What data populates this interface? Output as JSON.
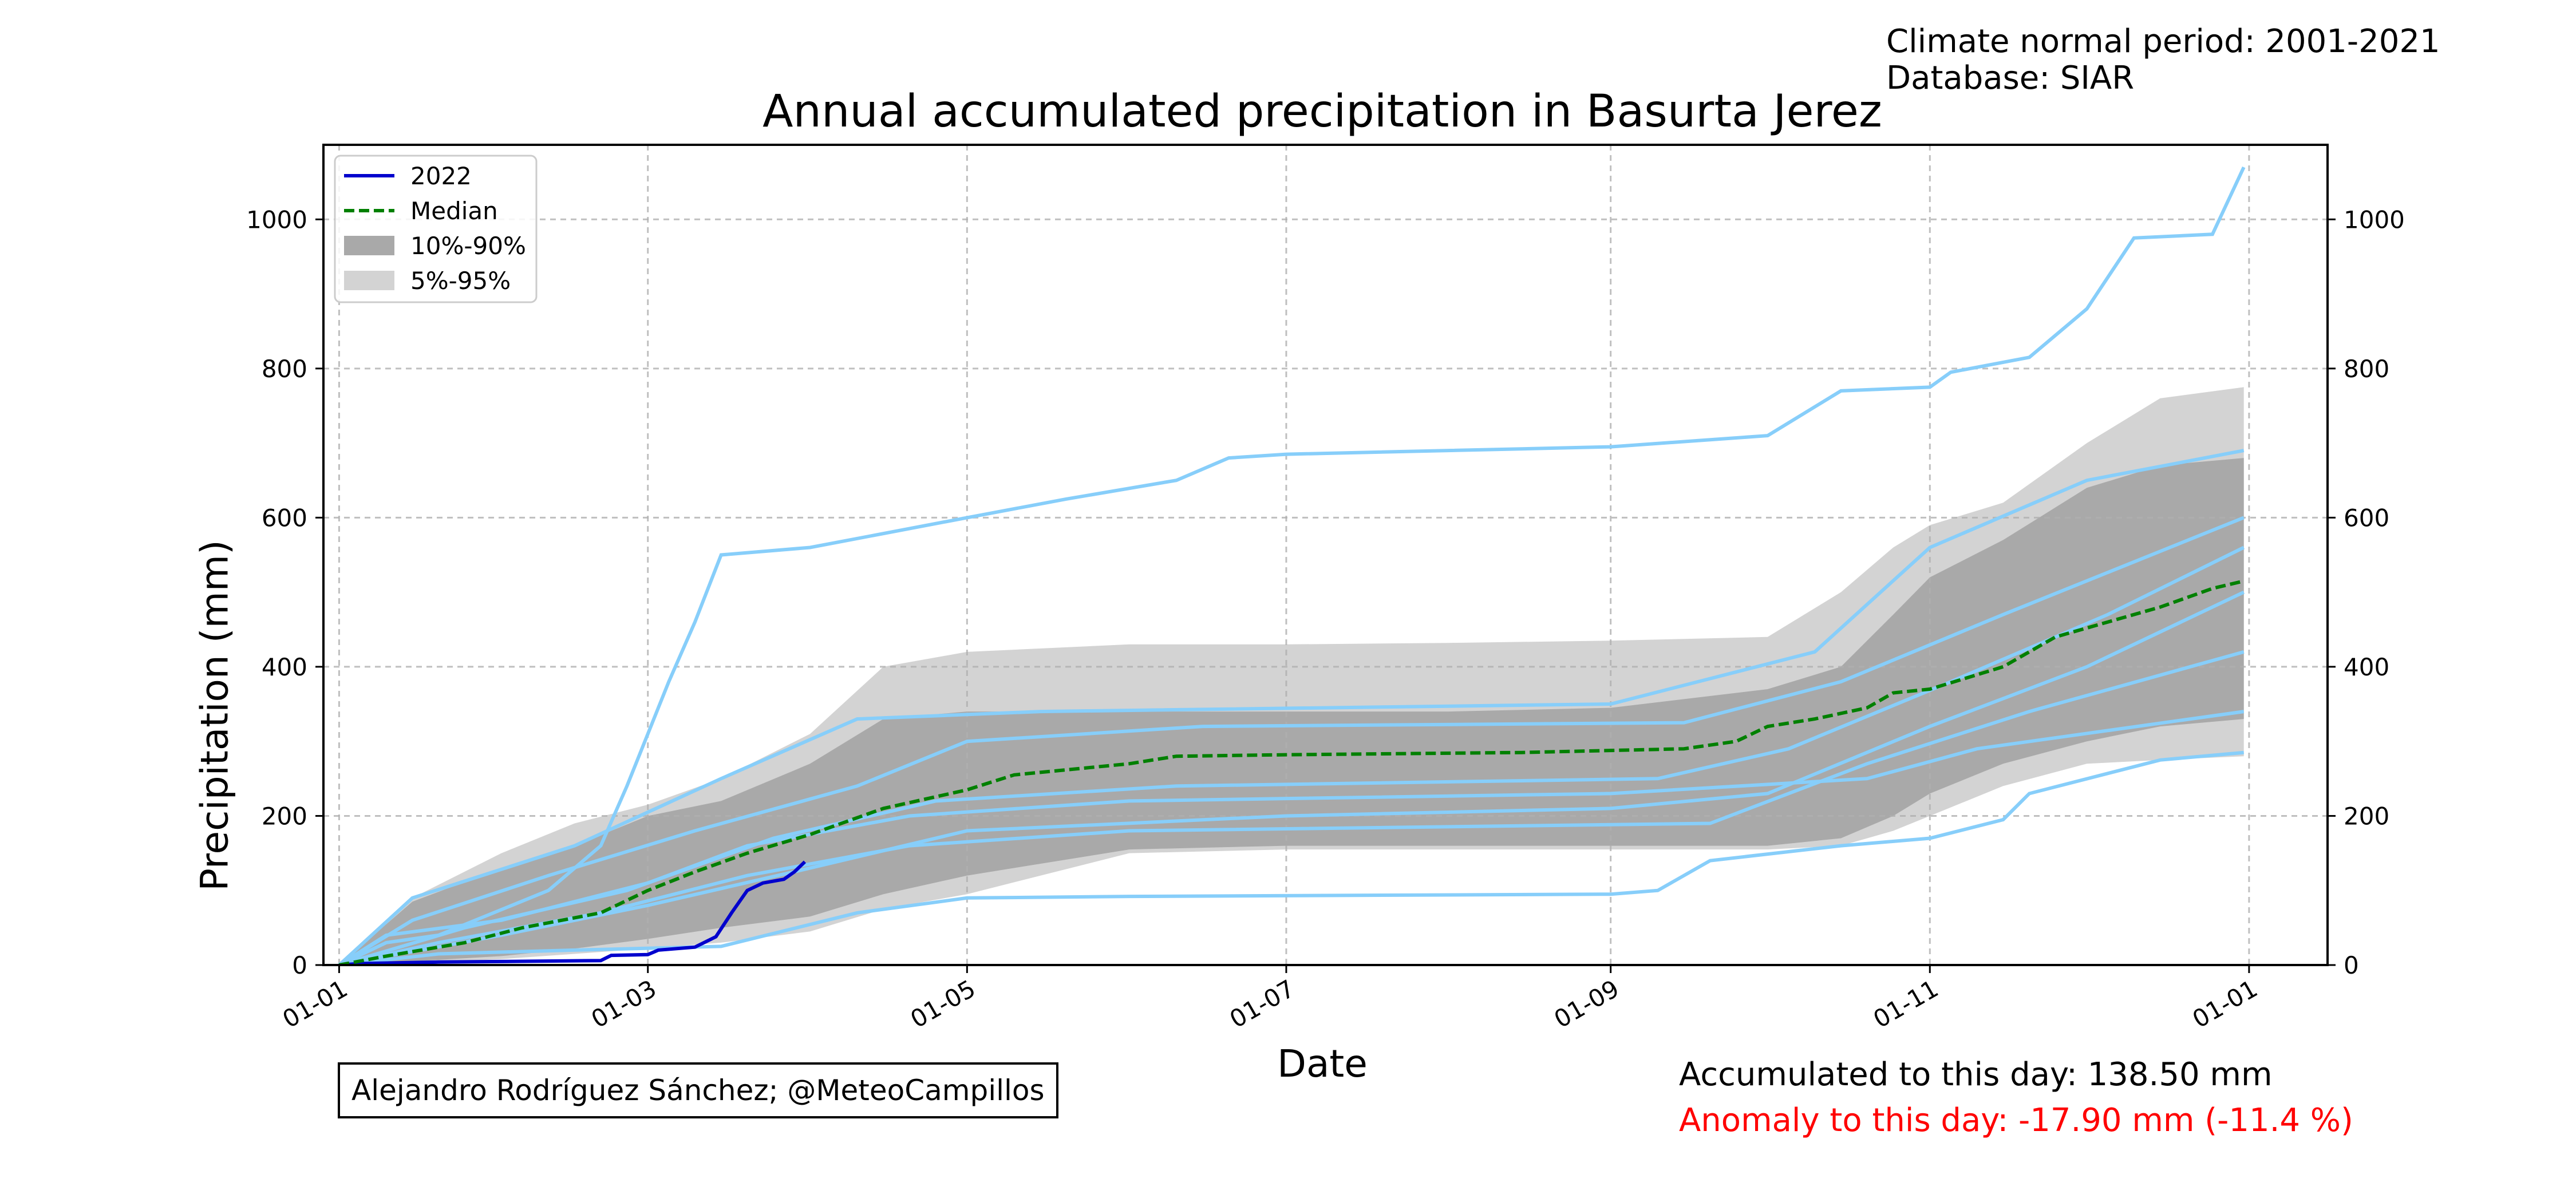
{
  "meta": {
    "normal_period": "Climate normal period: 2001-2021",
    "database": "Database: SIAR"
  },
  "credit": "Alejandro Rodríguez Sánchez; @MeteoCampillos",
  "stats": {
    "accumulated": "Accumulated to this day: 138.50 mm",
    "anomaly": "Anomaly to this day: -17.90 mm (-11.4 %)",
    "anomaly_color": "#ff0000"
  },
  "chart_data": {
    "type": "line",
    "title": "Annual accumulated precipitation in Basurta Jerez",
    "xlabel": "Date",
    "ylabel": "Precipitation (mm)",
    "xlim": [
      "2021-12-29",
      "2023-01-16"
    ],
    "ylim": [
      0,
      1100
    ],
    "x_ticks": [
      {
        "date": "2022-01-01",
        "label": "01-01"
      },
      {
        "date": "2022-03-01",
        "label": "01-03"
      },
      {
        "date": "2022-05-01",
        "label": "01-05"
      },
      {
        "date": "2022-07-01",
        "label": "01-07"
      },
      {
        "date": "2022-09-01",
        "label": "01-09"
      },
      {
        "date": "2022-11-01",
        "label": "01-11"
      },
      {
        "date": "2023-01-01",
        "label": "01-01"
      }
    ],
    "y_ticks": [
      0,
      200,
      400,
      600,
      800,
      1000
    ],
    "grid": true,
    "legend_position": "top-left",
    "colors": {
      "current": "#0000cd",
      "median": "#008000",
      "band_10_90": "#a9a9a9",
      "band_5_95": "#d3d3d3",
      "historical": "#87cefa"
    },
    "legend": [
      {
        "label": "2022",
        "kind": "line",
        "color": "#0000cd"
      },
      {
        "label": "Median",
        "kind": "dashed",
        "color": "#008000"
      },
      {
        "label": "10%-90%",
        "kind": "patch",
        "color": "#a9a9a9"
      },
      {
        "label": "5%-95%",
        "kind": "patch",
        "color": "#d3d3d3"
      }
    ],
    "series": [
      {
        "name": "2022",
        "style": "solid",
        "color": "#0000cd",
        "points": [
          [
            "2022-01-01",
            0
          ],
          [
            "2022-01-05",
            2
          ],
          [
            "2022-01-20",
            4
          ],
          [
            "2022-02-05",
            5
          ],
          [
            "2022-02-20",
            6
          ],
          [
            "2022-02-22",
            13
          ],
          [
            "2022-03-01",
            14
          ],
          [
            "2022-03-03",
            20
          ],
          [
            "2022-03-10",
            24
          ],
          [
            "2022-03-14",
            38
          ],
          [
            "2022-03-17",
            70
          ],
          [
            "2022-03-20",
            100
          ],
          [
            "2022-03-23",
            110
          ],
          [
            "2022-03-27",
            115
          ],
          [
            "2022-03-29",
            125
          ],
          [
            "2022-03-31",
            138.5
          ]
        ]
      },
      {
        "name": "Median",
        "style": "dashed",
        "color": "#008000",
        "points": [
          [
            "2022-01-01",
            0
          ],
          [
            "2022-01-10",
            12
          ],
          [
            "2022-01-25",
            30
          ],
          [
            "2022-02-05",
            50
          ],
          [
            "2022-02-20",
            70
          ],
          [
            "2022-03-01",
            100
          ],
          [
            "2022-03-10",
            125
          ],
          [
            "2022-03-20",
            150
          ],
          [
            "2022-04-01",
            175
          ],
          [
            "2022-04-15",
            210
          ],
          [
            "2022-05-01",
            235
          ],
          [
            "2022-05-10",
            255
          ],
          [
            "2022-06-01",
            270
          ],
          [
            "2022-06-10",
            280
          ],
          [
            "2022-07-01",
            282
          ],
          [
            "2022-08-15",
            285
          ],
          [
            "2022-09-15",
            290
          ],
          [
            "2022-09-25",
            300
          ],
          [
            "2022-10-01",
            320
          ],
          [
            "2022-10-10",
            330
          ],
          [
            "2022-10-20",
            345
          ],
          [
            "2022-10-25",
            365
          ],
          [
            "2022-11-01",
            370
          ],
          [
            "2022-11-15",
            400
          ],
          [
            "2022-11-25",
            440
          ],
          [
            "2022-12-05",
            460
          ],
          [
            "2022-12-15",
            480
          ],
          [
            "2022-12-25",
            505
          ],
          [
            "2022-12-31",
            515
          ]
        ]
      }
    ],
    "bands": [
      {
        "name": "5%-95%",
        "color": "#d3d3d3",
        "x": [
          "2022-01-01",
          "2022-01-15",
          "2022-02-01",
          "2022-02-15",
          "2022-03-01",
          "2022-03-15",
          "2022-04-01",
          "2022-04-15",
          "2022-05-01",
          "2022-06-01",
          "2022-07-01",
          "2022-08-01",
          "2022-09-01",
          "2022-10-01",
          "2022-10-15",
          "2022-10-25",
          "2022-11-01",
          "2022-11-15",
          "2022-12-01",
          "2022-12-15",
          "2022-12-31"
        ],
        "lower": [
          0,
          2,
          8,
          15,
          22,
          30,
          45,
          75,
          95,
          150,
          155,
          155,
          155,
          155,
          160,
          180,
          200,
          240,
          270,
          275,
          280
        ],
        "upper": [
          0,
          90,
          150,
          190,
          215,
          250,
          310,
          400,
          420,
          430,
          430,
          432,
          435,
          440,
          500,
          560,
          590,
          620,
          700,
          760,
          775
        ]
      },
      {
        "name": "10%-90%",
        "color": "#a9a9a9",
        "x": [
          "2022-01-01",
          "2022-01-15",
          "2022-02-01",
          "2022-02-15",
          "2022-03-01",
          "2022-03-15",
          "2022-04-01",
          "2022-04-15",
          "2022-05-01",
          "2022-06-01",
          "2022-07-01",
          "2022-08-01",
          "2022-09-01",
          "2022-10-01",
          "2022-10-15",
          "2022-10-25",
          "2022-11-01",
          "2022-11-15",
          "2022-12-01",
          "2022-12-15",
          "2022-12-31"
        ],
        "lower": [
          0,
          5,
          12,
          22,
          35,
          50,
          65,
          95,
          120,
          155,
          160,
          160,
          160,
          160,
          170,
          200,
          230,
          270,
          300,
          320,
          330
        ],
        "upper": [
          0,
          85,
          130,
          160,
          200,
          220,
          270,
          330,
          340,
          340,
          340,
          340,
          345,
          370,
          400,
          470,
          520,
          570,
          640,
          670,
          680
        ]
      }
    ],
    "historical": [
      {
        "points": [
          [
            "2022-01-01",
            0
          ],
          [
            "2022-01-10",
            30
          ],
          [
            "2022-01-20",
            40
          ],
          [
            "2022-02-10",
            100
          ],
          [
            "2022-02-20",
            160
          ],
          [
            "2022-02-25",
            240
          ],
          [
            "2022-03-05",
            380
          ],
          [
            "2022-03-10",
            460
          ],
          [
            "2022-03-15",
            550
          ],
          [
            "2022-04-01",
            560
          ],
          [
            "2022-05-01",
            600
          ],
          [
            "2022-05-20",
            625
          ],
          [
            "2022-06-10",
            650
          ],
          [
            "2022-06-20",
            680
          ],
          [
            "2022-07-01",
            685
          ],
          [
            "2022-09-01",
            695
          ],
          [
            "2022-10-01",
            710
          ],
          [
            "2022-10-15",
            770
          ],
          [
            "2022-11-01",
            775
          ],
          [
            "2022-11-05",
            795
          ],
          [
            "2022-11-20",
            815
          ],
          [
            "2022-12-01",
            880
          ],
          [
            "2022-12-10",
            975
          ],
          [
            "2022-12-25",
            980
          ],
          [
            "2022-12-31",
            1070
          ]
        ]
      },
      {
        "points": [
          [
            "2022-01-01",
            0
          ],
          [
            "2022-01-20",
            15
          ],
          [
            "2022-02-15",
            20
          ],
          [
            "2022-03-15",
            25
          ],
          [
            "2022-04-10",
            70
          ],
          [
            "2022-05-01",
            90
          ],
          [
            "2022-06-01",
            92
          ],
          [
            "2022-09-01",
            95
          ],
          [
            "2022-09-10",
            100
          ],
          [
            "2022-09-20",
            140
          ],
          [
            "2022-10-15",
            160
          ],
          [
            "2022-11-01",
            170
          ],
          [
            "2022-11-15",
            195
          ],
          [
            "2022-11-20",
            230
          ],
          [
            "2022-12-15",
            275
          ],
          [
            "2022-12-31",
            285
          ]
        ]
      },
      {
        "points": [
          [
            "2022-01-01",
            0
          ],
          [
            "2022-01-10",
            40
          ],
          [
            "2022-02-01",
            60
          ],
          [
            "2022-03-01",
            110
          ],
          [
            "2022-03-20",
            160
          ],
          [
            "2022-04-20",
            200
          ],
          [
            "2022-06-01",
            220
          ],
          [
            "2022-09-01",
            230
          ],
          [
            "2022-10-20",
            250
          ],
          [
            "2022-11-10",
            290
          ],
          [
            "2022-12-31",
            340
          ]
        ]
      },
      {
        "points": [
          [
            "2022-01-01",
            0
          ],
          [
            "2022-01-15",
            60
          ],
          [
            "2022-02-10",
            120
          ],
          [
            "2022-03-10",
            180
          ],
          [
            "2022-04-10",
            240
          ],
          [
            "2022-05-01",
            300
          ],
          [
            "2022-06-15",
            320
          ],
          [
            "2022-09-15",
            325
          ],
          [
            "2022-10-15",
            380
          ],
          [
            "2022-11-15",
            470
          ],
          [
            "2022-12-31",
            600
          ]
        ]
      },
      {
        "points": [
          [
            "2022-01-01",
            0
          ],
          [
            "2022-01-20",
            30
          ],
          [
            "2022-02-20",
            70
          ],
          [
            "2022-03-20",
            120
          ],
          [
            "2022-04-20",
            160
          ],
          [
            "2022-06-01",
            180
          ],
          [
            "2022-09-20",
            190
          ],
          [
            "2022-10-20",
            270
          ],
          [
            "2022-11-20",
            340
          ],
          [
            "2022-12-31",
            420
          ]
        ]
      },
      {
        "points": [
          [
            "2022-01-01",
            0
          ],
          [
            "2022-01-15",
            90
          ],
          [
            "2022-02-15",
            160
          ],
          [
            "2022-03-15",
            250
          ],
          [
            "2022-04-10",
            330
          ],
          [
            "2022-05-15",
            340
          ],
          [
            "2022-09-01",
            350
          ],
          [
            "2022-10-10",
            420
          ],
          [
            "2022-11-01",
            560
          ],
          [
            "2022-12-01",
            650
          ],
          [
            "2022-12-31",
            690
          ]
        ]
      },
      {
        "points": [
          [
            "2022-01-01",
            0
          ],
          [
            "2022-02-01",
            40
          ],
          [
            "2022-03-01",
            80
          ],
          [
            "2022-04-01",
            130
          ],
          [
            "2022-05-01",
            180
          ],
          [
            "2022-07-01",
            200
          ],
          [
            "2022-09-01",
            210
          ],
          [
            "2022-10-01",
            230
          ],
          [
            "2022-11-01",
            320
          ],
          [
            "2022-12-01",
            400
          ],
          [
            "2022-12-31",
            500
          ]
        ]
      },
      {
        "points": [
          [
            "2022-01-01",
            0
          ],
          [
            "2022-01-25",
            50
          ],
          [
            "2022-02-25",
            100
          ],
          [
            "2022-03-25",
            170
          ],
          [
            "2022-04-25",
            220
          ],
          [
            "2022-06-10",
            240
          ],
          [
            "2022-09-10",
            250
          ],
          [
            "2022-10-05",
            290
          ],
          [
            "2022-11-05",
            380
          ],
          [
            "2022-12-05",
            470
          ],
          [
            "2022-12-31",
            560
          ]
        ]
      }
    ]
  }
}
